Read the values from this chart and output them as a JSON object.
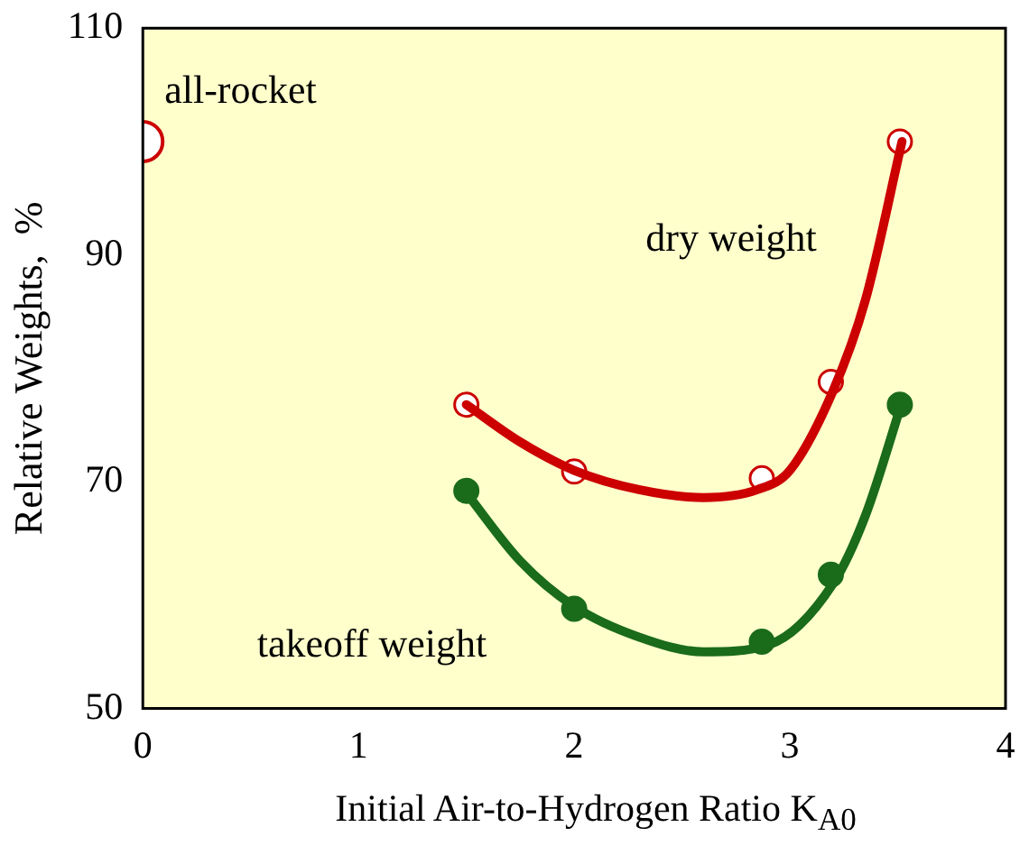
{
  "chart_data": {
    "type": "line",
    "xlabel": "Initial Air-to-Hydrogen Ratio K$_{A0}$",
    "ylabel": "Relative Weights,  %",
    "xlim": [
      0,
      4
    ],
    "xticks": [
      0,
      1,
      2,
      3,
      4
    ],
    "ylim": [
      50,
      110
    ],
    "yticks": [
      50,
      70,
      90,
      110
    ],
    "grid": false,
    "legend": false,
    "marker": "none",
    "line_style": "solid",
    "series": [
      {
        "name": "dry weight",
        "color": "#cc0000",
        "x": [
          1.5,
          1.75,
          2.0,
          2.3,
          2.6,
          2.85,
          3.0,
          3.2,
          3.35,
          3.52
        ],
        "values": [
          76.8,
          73.5,
          71.0,
          69.3,
          68.6,
          69.3,
          71.0,
          78.0,
          86.0,
          100.0
        ]
      },
      {
        "name": "takeoff weight",
        "color": "#1a6b1a",
        "x": [
          1.5,
          1.75,
          2.0,
          2.3,
          2.6,
          2.9,
          3.2,
          3.35,
          3.52
        ],
        "values": [
          69.0,
          63.0,
          59.0,
          56.3,
          55.0,
          55.6,
          61.0,
          67.0,
          77.0
        ]
      },
      {
        "type": "scatter",
        "marker": "circle",
        "color": "#cc0000",
        "colors": [
          "#ffffff",
          "#ffffff",
          "#ffffff",
          "#ffffff",
          "#ffffff"
        ],
        "x": [
          1.5,
          2.0,
          2.87,
          3.19,
          3.51
        ],
        "values": [
          76.8,
          70.9,
          70.3,
          78.8,
          100.0
        ]
      },
      {
        "type": "scatter",
        "marker": "circle",
        "color": "#1a6b1a",
        "colors": [
          "#1a6b1a",
          "#1a6b1a",
          "#1a6b1a",
          "#1a6b1a",
          "#1a6b1a"
        ],
        "x": [
          1.5,
          2.0,
          2.87,
          3.19,
          3.51
        ],
        "values": [
          69.2,
          58.8,
          55.9,
          61.8,
          76.8
        ]
      },
      {
        "name": "all-rocket",
        "type": "scatter",
        "marker": "circle",
        "color": "#cc0000",
        "colors": [
          "#ffffff"
        ],
        "x": [
          0
        ],
        "values": [
          100
        ]
      }
    ]
  }
}
